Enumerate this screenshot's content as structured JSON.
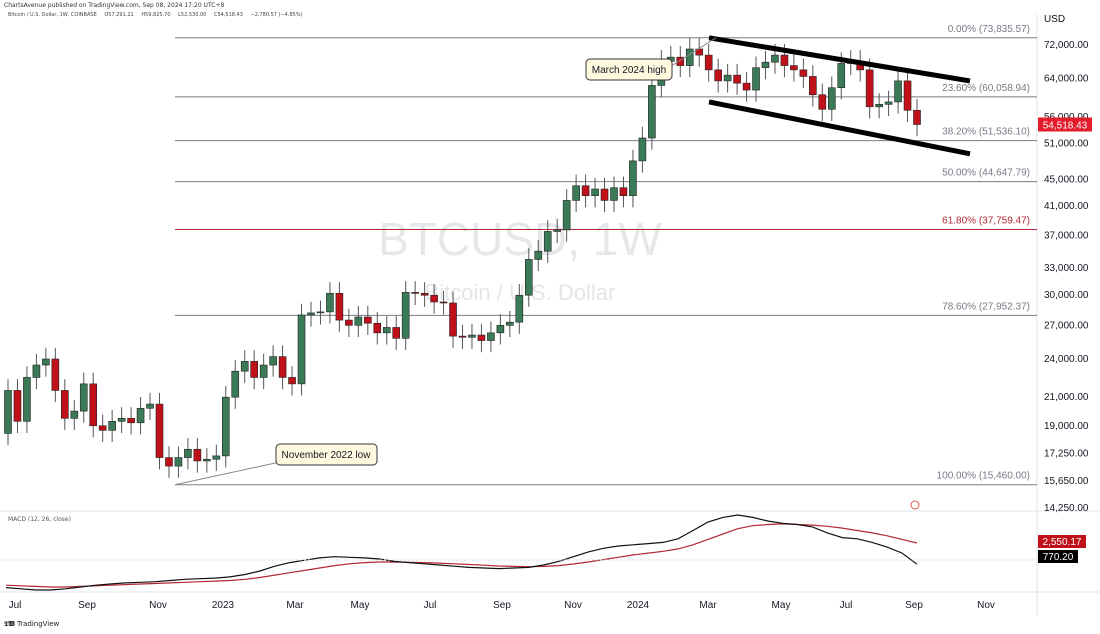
{
  "header": {
    "published": "ChartsAvenue published on TradingView.com, Sep 08, 2024 17:20 UTC+8",
    "symbol_line": "Bitcoin / U.S. Dollar, 1W, COINBASE",
    "ohlc": [
      "O57,291.21",
      "H59,825.70",
      "L52,530.00",
      "C54,518.43",
      "−2,780.57 (−4.85%)"
    ]
  },
  "footer": {
    "brand": "TradingView"
  },
  "chart_data": {
    "type": "candlestick",
    "symbol": "BTCUSD, 1W",
    "watermark_main": "BTCUSD, 1W",
    "watermark_sub": "Bitcoin / U.S. Dollar",
    "currency_label": "USD",
    "last_price_label": "54,518.43",
    "last_price": 54518.43,
    "y_scale": "log",
    "ylim": [
      14250,
      78000
    ],
    "y_ticks": [
      72000,
      64000,
      56000,
      51000,
      45000,
      41000,
      37000,
      33000,
      30000,
      27000,
      24000,
      21000,
      19000,
      17250,
      15650,
      14250
    ],
    "x_ticks": [
      "Jul",
      "Sep",
      "Nov",
      "2023",
      "Mar",
      "May",
      "Jul",
      "Sep",
      "Nov",
      "2024",
      "Mar",
      "May",
      "Jul",
      "Sep",
      "Nov"
    ],
    "fib_levels": [
      {
        "ratio": "0.00%",
        "price": 73835.57,
        "color": "#787b86"
      },
      {
        "ratio": "23.60%",
        "price": 60058.94,
        "color": "#787b86"
      },
      {
        "ratio": "38.20%",
        "price": 51536.1,
        "color": "#787b86"
      },
      {
        "ratio": "50.00%",
        "price": 44647.79,
        "color": "#787b86"
      },
      {
        "ratio": "61.80%",
        "price": 37759.47,
        "color": "#b22833"
      },
      {
        "ratio": "78.60%",
        "price": 27952.37,
        "color": "#787b86"
      },
      {
        "ratio": "100.00%",
        "price": 15460.0,
        "color": "#787b86"
      }
    ],
    "annotations": [
      {
        "text": "March 2024 high",
        "price": 73835.57
      },
      {
        "text": "November 2022 low",
        "price": 15460.0
      }
    ],
    "channel": {
      "upper": [
        73835.57,
        63500
      ],
      "lower": [
        59000,
        49200
      ]
    },
    "macd": {
      "label": "MACD (12, 26, close)",
      "values": [
        "2,550.17",
        "770.20"
      ],
      "macd_line": [
        -1200,
        -1300,
        -1400,
        -1400,
        -1300,
        -1150,
        -1000,
        -900,
        -800,
        -750,
        -700,
        -600,
        -500,
        -450,
        -400,
        -300,
        -100,
        200,
        600,
        900,
        1100,
        1300,
        1400,
        1350,
        1300,
        1200,
        1000,
        900,
        800,
        700,
        600,
        500,
        450,
        400,
        450,
        500,
        700,
        1000,
        1400,
        1800,
        2100,
        2300,
        2400,
        2500,
        2600,
        2900,
        3600,
        4300,
        4700,
        4900,
        4700,
        4400,
        4200,
        4100,
        3900,
        3400,
        3000,
        2900,
        2600,
        2200,
        1700,
        770
      ],
      "signal_line": [
        -1000,
        -1050,
        -1100,
        -1150,
        -1150,
        -1100,
        -1050,
        -1000,
        -950,
        -900,
        -850,
        -800,
        -750,
        -700,
        -650,
        -600,
        -500,
        -350,
        -150,
        50,
        250,
        450,
        650,
        800,
        900,
        950,
        950,
        930,
        900,
        860,
        800,
        740,
        680,
        620,
        580,
        560,
        580,
        650,
        780,
        950,
        1150,
        1350,
        1550,
        1700,
        1850,
        2050,
        2400,
        2850,
        3300,
        3750,
        4000,
        4100,
        4150,
        4100,
        4050,
        3950,
        3800,
        3600,
        3400,
        3150,
        2850,
        2550
      ]
    }
  }
}
